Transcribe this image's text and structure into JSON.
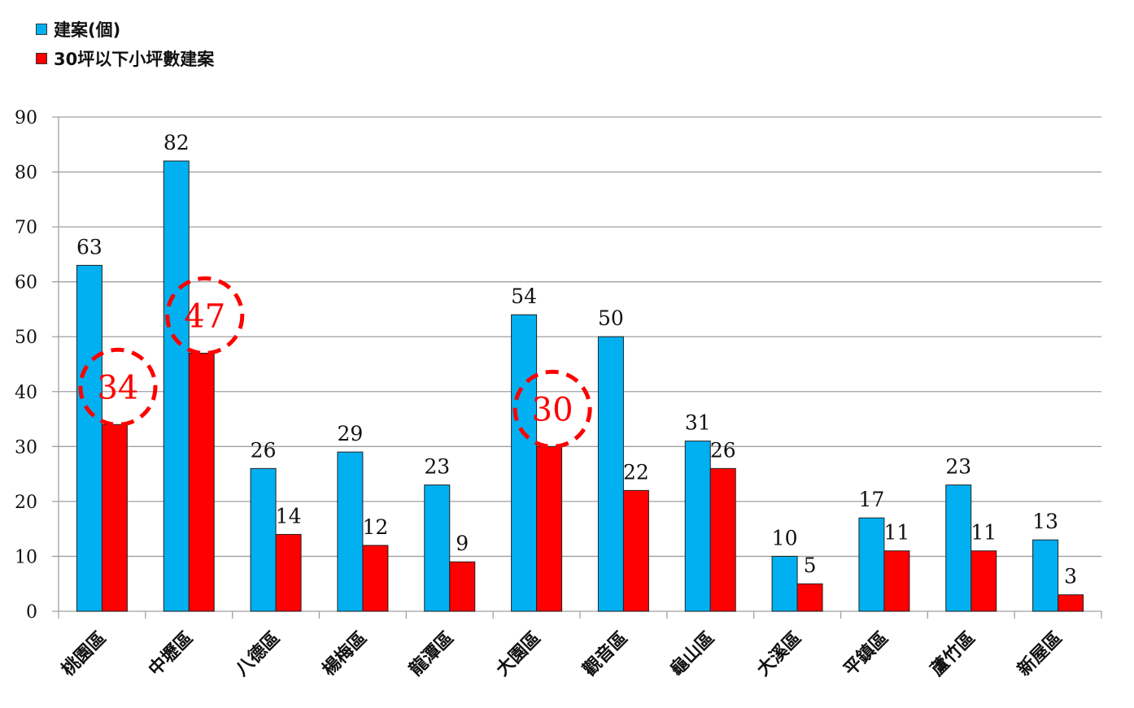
{
  "legend": [
    {
      "label": "建案(個)",
      "color": "#00b0f0"
    },
    {
      "label": "30坪以下小坪數建案",
      "color": "#ff0000"
    }
  ],
  "chart_data": {
    "type": "bar",
    "title": "",
    "xlabel": "",
    "ylabel": "",
    "ylim": [
      0,
      90
    ],
    "yticks": [
      0,
      10,
      20,
      30,
      40,
      50,
      60,
      70,
      80,
      90
    ],
    "grid": true,
    "legend_position": "top-left",
    "categories": [
      "桃園區",
      "中壢區",
      "八德區",
      "楊梅區",
      "龍潭區",
      "大園區",
      "觀音區",
      "龜山區",
      "大溪區",
      "平鎮區",
      "蘆竹區",
      "新屋區"
    ],
    "series": [
      {
        "name": "建案(個)",
        "color": "#00b0f0",
        "values": [
          63,
          82,
          26,
          29,
          23,
          54,
          50,
          31,
          10,
          17,
          23,
          13
        ]
      },
      {
        "name": "30坪以下小坪數建案",
        "color": "#ff0000",
        "values": [
          34,
          47,
          14,
          12,
          9,
          30,
          22,
          26,
          5,
          11,
          11,
          3
        ]
      }
    ],
    "annotations": [
      {
        "type": "dashed-circle",
        "series": 1,
        "category": "桃園區",
        "label": "34"
      },
      {
        "type": "dashed-circle",
        "series": 1,
        "category": "中壢區",
        "label": "47"
      },
      {
        "type": "dashed-circle",
        "series": 1,
        "category": "大園區",
        "label": "30"
      }
    ]
  }
}
